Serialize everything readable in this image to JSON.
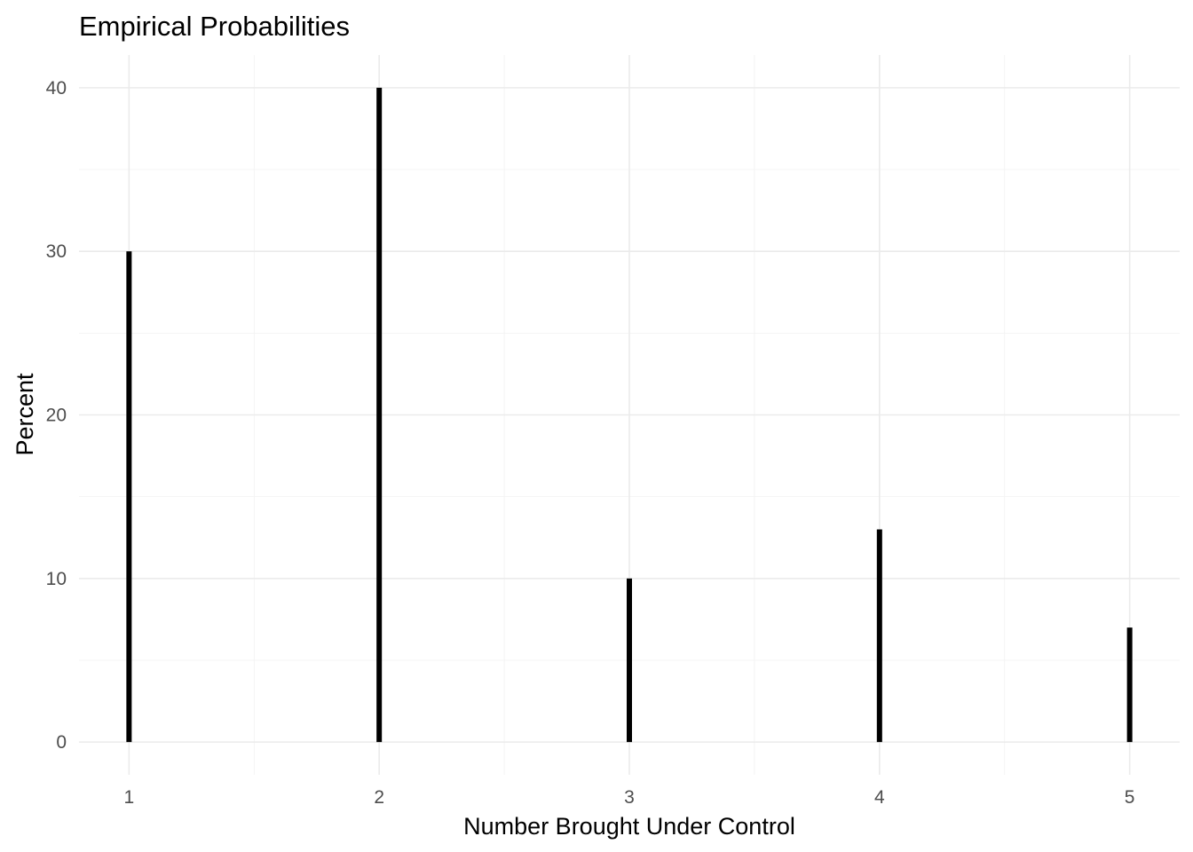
{
  "chart_data": {
    "type": "bar",
    "title": "Empirical Probabilities",
    "xlabel": "Number Brought Under Control",
    "ylabel": "Percent",
    "categories": [
      1,
      2,
      3,
      4,
      5
    ],
    "values": [
      30,
      40,
      10,
      13,
      7
    ],
    "x_ticks": [
      "1",
      "2",
      "3",
      "4",
      "5"
    ],
    "y_ticks": [
      "0",
      "10",
      "20",
      "30",
      "40"
    ],
    "xlim": [
      0.8,
      5.2
    ],
    "ylim": [
      -2,
      42
    ],
    "grid": true,
    "legend": "none",
    "bar_color": "#000000",
    "grid_color": "#ebebeb"
  }
}
